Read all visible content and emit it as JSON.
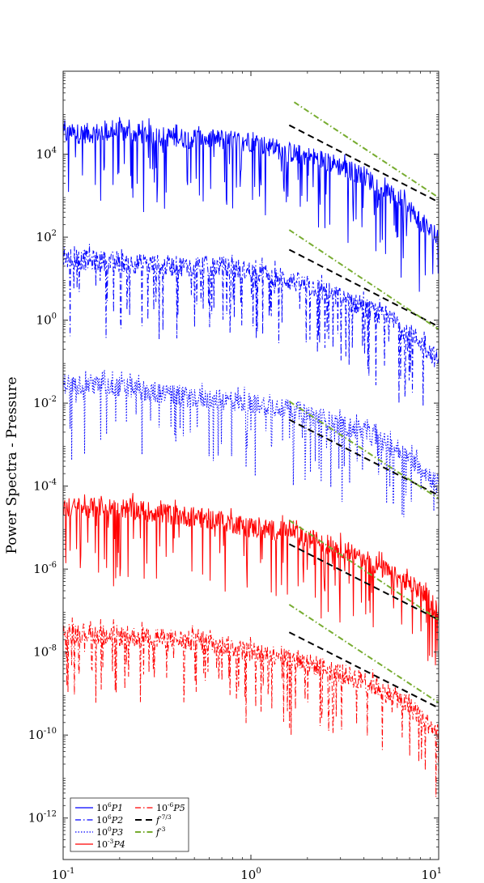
{
  "chart_data": {
    "type": "line",
    "title": "",
    "xlabel": "",
    "ylabel": "Power Spectra - Pressure",
    "x_scale": "log",
    "y_scale": "log",
    "xlim": [
      0.1,
      10
    ],
    "ylim": [
      1e-13,
      1000000.0
    ],
    "grid": false,
    "legend_position": "bottom-left",
    "x_ticks": [
      {
        "value": 0.1,
        "base": "10",
        "exp": "-1"
      },
      {
        "value": 1,
        "base": "10",
        "exp": "0"
      },
      {
        "value": 10,
        "base": "10",
        "exp": "1"
      }
    ],
    "y_ticks": [
      {
        "value": 1e-12,
        "base": "10",
        "exp": "-12"
      },
      {
        "value": 1e-10,
        "base": "10",
        "exp": "-10"
      },
      {
        "value": 1e-08,
        "base": "10",
        "exp": "-8"
      },
      {
        "value": 1e-06,
        "base": "10",
        "exp": "-6"
      },
      {
        "value": 0.0001,
        "base": "10",
        "exp": "-4"
      },
      {
        "value": 0.01,
        "base": "10",
        "exp": "-2"
      },
      {
        "value": 1,
        "base": "10",
        "exp": "0"
      },
      {
        "value": 100,
        "base": "10",
        "exp": "2"
      },
      {
        "value": 10000,
        "base": "10",
        "exp": "4"
      }
    ],
    "series": [
      {
        "name": "10^6 P1",
        "label_parts": [
          "10",
          "6",
          "P1"
        ],
        "color": "#0000ff",
        "dash": "solid",
        "trend_x": [
          0.1,
          0.2,
          0.4,
          0.7,
          1.0,
          1.5,
          2.5,
          4,
          6,
          8,
          10
        ],
        "trend_y": [
          30000,
          35000,
          25000,
          22000,
          20000,
          12000,
          7000,
          3000,
          800,
          250,
          80
        ]
      },
      {
        "name": "10^6 P2",
        "label_parts": [
          "10",
          "6",
          "P2"
        ],
        "color": "#0000ff",
        "dash": "dashdot",
        "trend_x": [
          0.1,
          0.2,
          0.4,
          0.7,
          1.0,
          1.5,
          2.5,
          4,
          6,
          8,
          10
        ],
        "trend_y": [
          30,
          25,
          20,
          20,
          15,
          10,
          5,
          2,
          0.8,
          0.3,
          0.1
        ]
      },
      {
        "name": "10^0 P3",
        "label_parts": [
          "10",
          "0",
          "P3"
        ],
        "color": "#0000ff",
        "dash": "dotted",
        "trend_x": [
          0.1,
          0.2,
          0.4,
          0.7,
          1.0,
          1.5,
          2.5,
          4,
          6,
          8,
          10
        ],
        "trend_y": [
          0.03,
          0.025,
          0.015,
          0.012,
          0.01,
          0.008,
          0.004,
          0.002,
          0.0008,
          0.0003,
          0.0001
        ]
      },
      {
        "name": "10^-3 P4",
        "label_parts": [
          "10",
          "-3",
          "P4"
        ],
        "color": "#ff0000",
        "dash": "solid",
        "trend_x": [
          0.1,
          0.2,
          0.4,
          0.7,
          1.0,
          1.5,
          2.5,
          4,
          6,
          8,
          10
        ],
        "trend_y": [
          3e-05,
          3e-05,
          2e-05,
          1.5e-05,
          1e-05,
          8e-06,
          4e-06,
          2e-06,
          6e-07,
          3e-07,
          1e-07
        ]
      },
      {
        "name": "10^-6 P5",
        "label_parts": [
          "10",
          "-6",
          "P5"
        ],
        "color": "#ff0000",
        "dash": "dashdot",
        "trend_x": [
          0.1,
          0.2,
          0.4,
          0.7,
          1.0,
          1.5,
          2.5,
          4,
          6,
          8,
          10
        ],
        "trend_y": [
          3e-08,
          2.5e-08,
          2e-08,
          1.5e-08,
          1e-08,
          8e-09,
          4e-09,
          2e-09,
          8e-10,
          3e-10,
          1e-10
        ]
      }
    ],
    "reference_lines": [
      {
        "name": "f^-7/3",
        "label_parts": [
          "f",
          "-7/3"
        ],
        "color": "#000000",
        "dash": "dashed",
        "segments": [
          {
            "x": [
              1.6,
              10
            ],
            "y": [
              50000,
              700
            ]
          },
          {
            "x": [
              1.6,
              10
            ],
            "y": [
              50,
              0.7
            ]
          },
          {
            "x": [
              1.6,
              10
            ],
            "y": [
              0.004,
              6e-05
            ]
          },
          {
            "x": [
              1.6,
              10
            ],
            "y": [
              4e-06,
              6e-08
            ]
          },
          {
            "x": [
              1.6,
              10
            ],
            "y": [
              3e-08,
              4.5e-10
            ]
          }
        ]
      },
      {
        "name": "f^-3",
        "label_parts": [
          "f",
          "-3"
        ],
        "color": "#77ac30",
        "dash": "dashdot",
        "segments": [
          {
            "x": [
              1.7,
              10
            ],
            "y": [
              180000,
              900
            ]
          },
          {
            "x": [
              1.6,
              10
            ],
            "y": [
              150,
              0.6
            ]
          },
          {
            "x": [
              1.6,
              10
            ],
            "y": [
              0.011,
              5e-05
            ]
          },
          {
            "x": [
              1.6,
              10
            ],
            "y": [
              1.5e-05,
              6e-08
            ]
          },
          {
            "x": [
              1.6,
              10
            ],
            "y": [
              1.4e-07,
              6e-10
            ]
          }
        ]
      }
    ]
  }
}
